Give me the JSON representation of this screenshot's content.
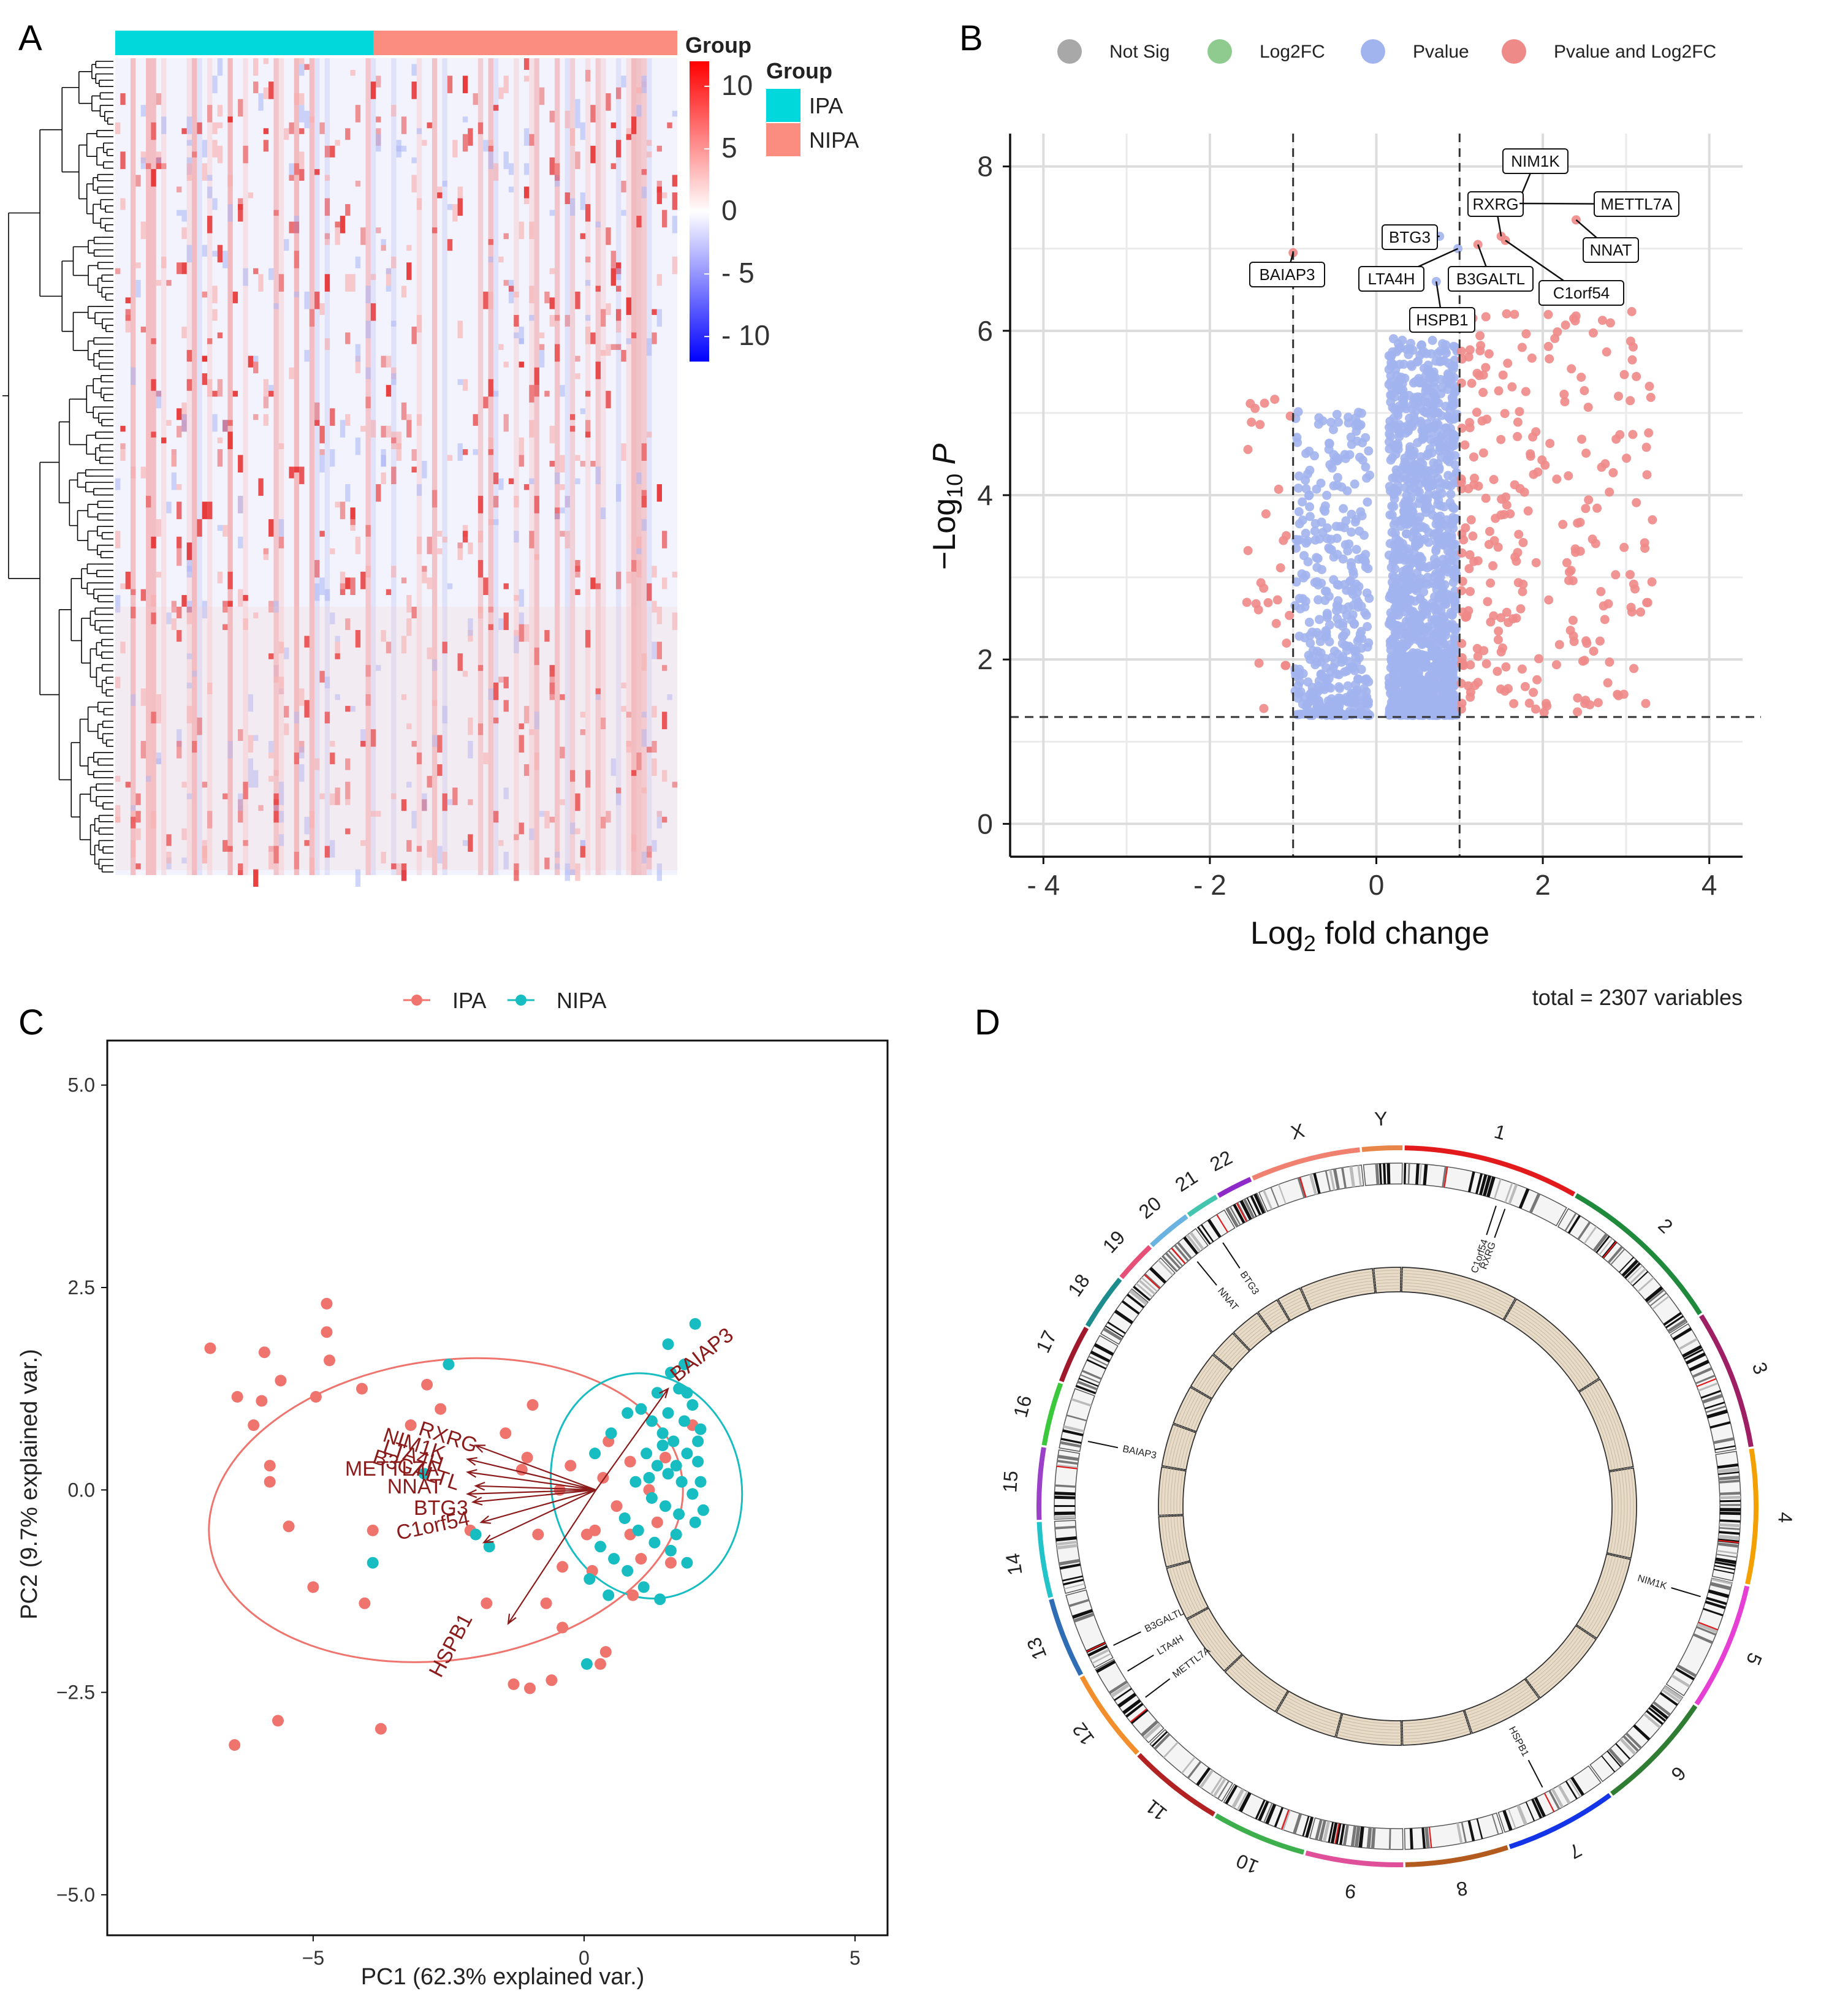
{
  "panel_letters": {
    "a": "A",
    "b": "B",
    "c": "C",
    "d": "D"
  },
  "chart_data": [
    {
      "type": "heatmap",
      "panel": "A",
      "annotation_label": "Group",
      "groups": [
        {
          "name": "IPA",
          "color": "#00D8DB",
          "fraction": 0.46
        },
        {
          "name": "NIPA",
          "color": "#FA8C80",
          "fraction": 0.54
        }
      ],
      "legend_title": "Group",
      "colorbar": {
        "min": -12,
        "max": 12,
        "low_color": "#0000FF",
        "mid_color": "#FFFFFF",
        "high_color": "#FF0000",
        "ticks": [
          {
            "value": 10,
            "label": "10"
          },
          {
            "value": 5,
            "label": "5"
          },
          {
            "value": 0,
            "label": "0"
          },
          {
            "value": -5,
            "label": "- 5"
          },
          {
            "value": -10,
            "label": "- 10"
          }
        ]
      }
    },
    {
      "type": "scatter",
      "panel": "B",
      "subtype": "volcano",
      "xlabel_main": "Log",
      "xlabel_sub": "2",
      "xlabel_rest": " fold change",
      "ylabel_main": "−Log",
      "ylabel_sub": "10",
      "ylabel_rest": " P",
      "xlim": [
        -4.4,
        4.4
      ],
      "ylim": [
        -0.4,
        8.4
      ],
      "xticks": [
        {
          "value": -4,
          "label": "- 4"
        },
        {
          "value": -2,
          "label": "- 2"
        },
        {
          "value": 0,
          "label": "0"
        },
        {
          "value": 2,
          "label": "2"
        },
        {
          "value": 4,
          "label": "4"
        }
      ],
      "yticks": [
        {
          "value": 0,
          "label": "0"
        },
        {
          "value": 2,
          "label": "2"
        },
        {
          "value": 4,
          "label": "4"
        },
        {
          "value": 6,
          "label": "6"
        },
        {
          "value": 8,
          "label": "8"
        }
      ],
      "fc_cutoffs": [
        -1,
        1
      ],
      "p_cutoff": 1.3,
      "legend": [
        {
          "label": "Not Sig",
          "color": "#A8A8A8"
        },
        {
          "label": "Log2FC",
          "color": "#8FCB8F"
        },
        {
          "label": "Pvalue",
          "color": "#A2B4EE"
        },
        {
          "label": "Pvalue and Log2FC",
          "color": "#EE8A88"
        }
      ],
      "caption": "total = 2307 variables",
      "labeled_genes": [
        {
          "gene": "NIM1K",
          "x": 1.72,
          "y": 7.6
        },
        {
          "gene": "RXRG",
          "x": 1.5,
          "y": 7.15
        },
        {
          "gene": "METTL7A",
          "x": 1.72,
          "y": 7.55
        },
        {
          "gene": "BTG3",
          "x": 0.76,
          "y": 7.15
        },
        {
          "gene": "NNAT",
          "x": 2.4,
          "y": 7.35
        },
        {
          "gene": "BAIAP3",
          "x": -1.0,
          "y": 6.95
        },
        {
          "gene": "LTA4H",
          "x": 0.98,
          "y": 7.0
        },
        {
          "gene": "B3GALTL",
          "x": 1.22,
          "y": 7.05
        },
        {
          "gene": "C1orf54",
          "x": 1.55,
          "y": 7.1
        },
        {
          "gene": "HSPB1",
          "x": 0.72,
          "y": 6.6
        }
      ]
    },
    {
      "type": "scatter",
      "panel": "C",
      "subtype": "pca-biplot",
      "xlabel": "PC1 (62.3% explained var.)",
      "ylabel": "PC2 (9.7% explained var.)",
      "xlim": [
        -8.8,
        5.6
      ],
      "ylim": [
        -5.5,
        5.55
      ],
      "xticks": [
        {
          "value": -5,
          "label": "−5"
        },
        {
          "value": 0,
          "label": "0"
        },
        {
          "value": 5,
          "label": "5"
        }
      ],
      "yticks": [
        {
          "value": 5,
          "label": "5.0"
        },
        {
          "value": 2.5,
          "label": "2.5"
        },
        {
          "value": 0,
          "label": "0.0"
        },
        {
          "value": -2.5,
          "label": "−2.5"
        },
        {
          "value": -5,
          "label": "−5.0"
        }
      ],
      "legend": [
        {
          "label": "IPA",
          "color": "#F0746E"
        },
        {
          "label": "NIPA",
          "color": "#18BDC2"
        }
      ],
      "series": [
        {
          "name": "IPA",
          "points": [
            [
              -6.9,
              1.75
            ],
            [
              -6.4,
              1.15
            ],
            [
              -6.1,
              0.8
            ],
            [
              -5.9,
              1.7
            ],
            [
              -5.95,
              1.1
            ],
            [
              -5.6,
              1.35
            ],
            [
              -4.95,
              1.15
            ],
            [
              -4.75,
              2.3
            ],
            [
              -4.75,
              1.95
            ],
            [
              -4.7,
              1.6
            ],
            [
              -4.1,
              1.25
            ],
            [
              -3.2,
              0.8
            ],
            [
              -2.9,
              1.3
            ],
            [
              -2.65,
              1.0
            ],
            [
              -5.8,
              0.3
            ],
            [
              -5.8,
              0.1
            ],
            [
              -5.45,
              -0.45
            ],
            [
              -5.0,
              -1.2
            ],
            [
              -4.05,
              -1.4
            ],
            [
              -3.9,
              -0.5
            ],
            [
              -1.8,
              -1.4
            ],
            [
              -1.3,
              -2.4
            ],
            [
              -1.0,
              -2.45
            ],
            [
              -0.6,
              -2.35
            ],
            [
              -0.4,
              -1.7
            ],
            [
              -1.05,
              0.4
            ],
            [
              -1.15,
              0.25
            ],
            [
              -0.85,
              -0.55
            ],
            [
              -1.45,
              0.7
            ],
            [
              -0.95,
              1.05
            ],
            [
              -0.7,
              -1.4
            ],
            [
              -0.4,
              -0.95
            ],
            [
              -0.25,
              0.3
            ],
            [
              0.05,
              -0.55
            ],
            [
              0.2,
              -0.5
            ],
            [
              0.35,
              0.15
            ],
            [
              0.6,
              -0.2
            ],
            [
              0.85,
              -0.55
            ],
            [
              1.05,
              -0.85
            ],
            [
              0.45,
              0.6
            ],
            [
              0.85,
              0.35
            ],
            [
              1.2,
              0.0
            ],
            [
              1.35,
              -0.4
            ],
            [
              1.5,
              0.4
            ],
            [
              0.3,
              -2.15
            ],
            [
              0.4,
              -2.0
            ],
            [
              -6.45,
              -3.15
            ],
            [
              -5.65,
              -2.85
            ],
            [
              -3.75,
              -2.95
            ],
            [
              -0.45,
              0.0
            ],
            [
              0.15,
              -1.0
            ],
            [
              0.9,
              -1.3
            ],
            [
              1.6,
              -0.9
            ],
            [
              2.0,
              0.8
            ],
            [
              -2.1,
              -0.5
            ]
          ]
        },
        {
          "name": "NIPA",
          "points": [
            [
              -2.5,
              1.55
            ],
            [
              -2.95,
              0.2
            ],
            [
              -3.9,
              -0.9
            ],
            [
              -2.0,
              -0.55
            ],
            [
              -1.75,
              -0.7
            ],
            [
              0.05,
              -2.15
            ],
            [
              2.05,
              2.05
            ],
            [
              1.55,
              1.8
            ],
            [
              1.85,
              1.55
            ],
            [
              1.35,
              1.2
            ],
            [
              1.75,
              1.25
            ],
            [
              2.0,
              1.05
            ],
            [
              1.55,
              0.95
            ],
            [
              1.85,
              0.85
            ],
            [
              2.15,
              0.75
            ],
            [
              1.25,
              0.85
            ],
            [
              1.45,
              0.7
            ],
            [
              1.65,
              0.6
            ],
            [
              1.9,
              0.45
            ],
            [
              2.1,
              0.35
            ],
            [
              1.15,
              0.45
            ],
            [
              1.35,
              0.3
            ],
            [
              1.55,
              0.2
            ],
            [
              1.8,
              0.1
            ],
            [
              2.0,
              -0.05
            ],
            [
              0.95,
              0.1
            ],
            [
              1.25,
              -0.1
            ],
            [
              1.5,
              -0.2
            ],
            [
              1.75,
              -0.3
            ],
            [
              2.05,
              -0.4
            ],
            [
              0.75,
              -0.35
            ],
            [
              1.0,
              -0.5
            ],
            [
              1.3,
              -0.65
            ],
            [
              1.6,
              -0.75
            ],
            [
              1.9,
              -0.9
            ],
            [
              0.3,
              -0.7
            ],
            [
              0.55,
              -0.85
            ],
            [
              0.8,
              -1.0
            ],
            [
              1.1,
              -1.2
            ],
            [
              1.4,
              -1.35
            ],
            [
              0.2,
              0.45
            ],
            [
              0.5,
              0.7
            ],
            [
              0.8,
              0.95
            ],
            [
              1.05,
              1.0
            ],
            [
              1.6,
              1.45
            ],
            [
              1.9,
              1.2
            ],
            [
              2.1,
              0.6
            ],
            [
              2.15,
              0.1
            ],
            [
              2.2,
              -0.25
            ],
            [
              1.7,
              -0.55
            ],
            [
              0.1,
              -1.1
            ],
            [
              0.45,
              -1.3
            ],
            [
              1.2,
              0.15
            ],
            [
              1.45,
              0.55
            ],
            [
              1.7,
              0.3
            ]
          ]
        }
      ],
      "ellipses": [
        {
          "group": "IPA",
          "cx": -2.55,
          "cy": -0.25,
          "rx": 4.4,
          "ry": 1.85,
          "angle_deg": 8
        },
        {
          "group": "NIPA",
          "cx": 1.15,
          "cy": 0.05,
          "rx": 1.75,
          "ry": 1.4,
          "angle_deg": 12
        }
      ],
      "loadings": [
        {
          "gene": "BAIAP3",
          "x": 1.55,
          "y": 1.25
        },
        {
          "gene": "RXRG",
          "x": -2.0,
          "y": 0.55
        },
        {
          "gene": "NIM1K",
          "x": -2.15,
          "y": 0.38
        },
        {
          "gene": "LTA4H",
          "x": -2.15,
          "y": 0.22
        },
        {
          "gene": "B3GALTL",
          "x": -2.0,
          "y": 0.05
        },
        {
          "gene": "METTL7A",
          "x": -2.15,
          "y": -0.05
        },
        {
          "gene": "NNAT",
          "x": -2.05,
          "y": -0.15
        },
        {
          "gene": "BTG3",
          "x": -1.9,
          "y": -0.4
        },
        {
          "gene": "C1orf54",
          "x": -1.85,
          "y": -0.65
        },
        {
          "gene": "HSPB1",
          "x": -1.4,
          "y": -1.65
        }
      ]
    },
    {
      "type": "circos",
      "panel": "D",
      "chromosomes": [
        {
          "label": "1",
          "color": "#E31A1C"
        },
        {
          "label": "2",
          "color": "#1F8A3C"
        },
        {
          "label": "3",
          "color": "#9E1F63"
        },
        {
          "label": "4",
          "color": "#F4A000"
        },
        {
          "label": "5",
          "color": "#E63FD3"
        },
        {
          "label": "6",
          "color": "#2E7D32"
        },
        {
          "label": "7",
          "color": "#1434E8"
        },
        {
          "label": "8",
          "color": "#B35A1F"
        },
        {
          "label": "9",
          "color": "#E0509A"
        },
        {
          "label": "10",
          "color": "#3DAF4D"
        },
        {
          "label": "11",
          "color": "#B22222"
        },
        {
          "label": "12",
          "color": "#F28E2B"
        },
        {
          "label": "13",
          "color": "#2F6DB5"
        },
        {
          "label": "14",
          "color": "#22C3C9"
        },
        {
          "label": "15",
          "color": "#9B40C9"
        },
        {
          "label": "16",
          "color": "#3CC83C"
        },
        {
          "label": "17",
          "color": "#A0182C"
        },
        {
          "label": "18",
          "color": "#1D8C8C"
        },
        {
          "label": "19",
          "color": "#E64F78"
        },
        {
          "label": "20",
          "color": "#6AB2E0"
        },
        {
          "label": "21",
          "color": "#44C6AE"
        },
        {
          "label": "22",
          "color": "#8E2BC8"
        },
        {
          "label": "X",
          "color": "#F08070"
        },
        {
          "label": "Y",
          "color": "#E8864A"
        }
      ],
      "chr_sizes": [
        249,
        243,
        198,
        191,
        181,
        171,
        159,
        146,
        138,
        134,
        135,
        133,
        114,
        107,
        102,
        90,
        83,
        80,
        59,
        64,
        47,
        51,
        156,
        57
      ],
      "gene_markers": [
        {
          "gene": "C1orf54",
          "chr": "1",
          "frac": 0.6
        },
        {
          "gene": "RXRG",
          "chr": "1",
          "frac": 0.66
        },
        {
          "gene": "NIM1K",
          "chr": "5",
          "frac": 0.18
        },
        {
          "gene": "HSPB1",
          "chr": "7",
          "frac": 0.5
        },
        {
          "gene": "METTL7A",
          "chr": "12",
          "frac": 0.42
        },
        {
          "gene": "LTA4H",
          "chr": "12",
          "frac": 0.8
        },
        {
          "gene": "B3GALTL",
          "chr": "13",
          "frac": 0.15
        },
        {
          "gene": "BAIAP3",
          "chr": "16",
          "frac": 0.2
        },
        {
          "gene": "NNAT",
          "chr": "20",
          "frac": 0.55
        },
        {
          "gene": "BTG3",
          "chr": "21",
          "frac": 0.4
        }
      ]
    }
  ]
}
